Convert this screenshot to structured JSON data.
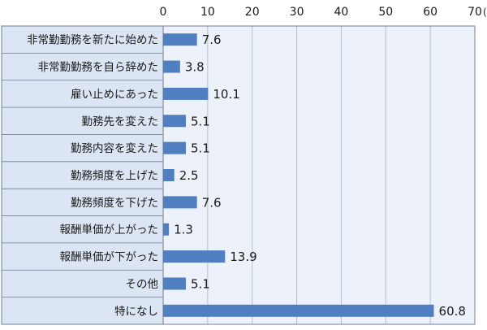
{
  "chart_data": {
    "type": "bar",
    "orientation": "horizontal",
    "unit_label": "(%)",
    "categories": [
      "非常勤勤務を新たに始めた",
      "非常勤勤務を自ら辞めた",
      "雇い止めにあった",
      "勤務先を変えた",
      "勤務内容を変えた",
      "勤務頻度を上げた",
      "勤務頻度を下げた",
      "報酬単価が上がった",
      "報酬単価が下がった",
      "その他",
      "特になし"
    ],
    "values": [
      7.6,
      3.8,
      10.1,
      5.1,
      5.1,
      2.5,
      7.6,
      1.3,
      13.9,
      5.1,
      60.8
    ],
    "value_labels": [
      "7.6",
      "3.8",
      "10.1",
      "5.1",
      "5.1",
      "2.5",
      "7.6",
      "1.3",
      "13.9",
      "5.1",
      "60.8"
    ],
    "xlim": [
      0,
      70
    ],
    "xticks": [
      0,
      10,
      20,
      30,
      40,
      50,
      60,
      70
    ],
    "xtick_labels": [
      "0",
      "10",
      "20",
      "30",
      "40",
      "50",
      "60",
      "70"
    ],
    "grid": true,
    "colors": {
      "bar": "#4f7fc1",
      "plot_bg": "#edf2fa",
      "label_bg": "#dbe5f3",
      "grid": "#b3bfd0",
      "border": "#6f7f96",
      "text": "#1a1a1a"
    }
  }
}
